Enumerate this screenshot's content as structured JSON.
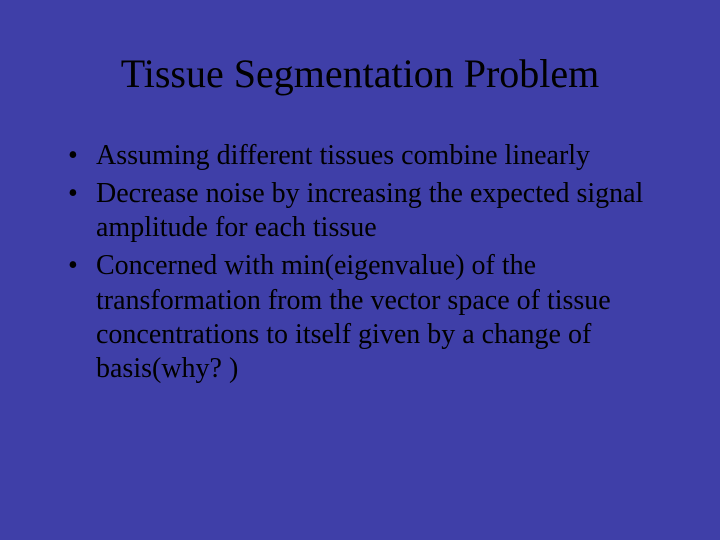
{
  "slide": {
    "background_color": "#3f3fa8",
    "text_color": "#000000",
    "font_family": "Times New Roman",
    "title": {
      "text": "Tissue Segmentation Problem",
      "fontsize": 40,
      "align": "center"
    },
    "bullets": {
      "fontsize": 28,
      "marker": "•",
      "items": [
        "Assuming different tissues combine linearly",
        "Decrease noise by increasing the expected signal amplitude for each tissue",
        "Concerned with min(eigenvalue) of the transformation from the vector space of tissue concentrations to itself given by a change of basis(why? )"
      ]
    }
  }
}
